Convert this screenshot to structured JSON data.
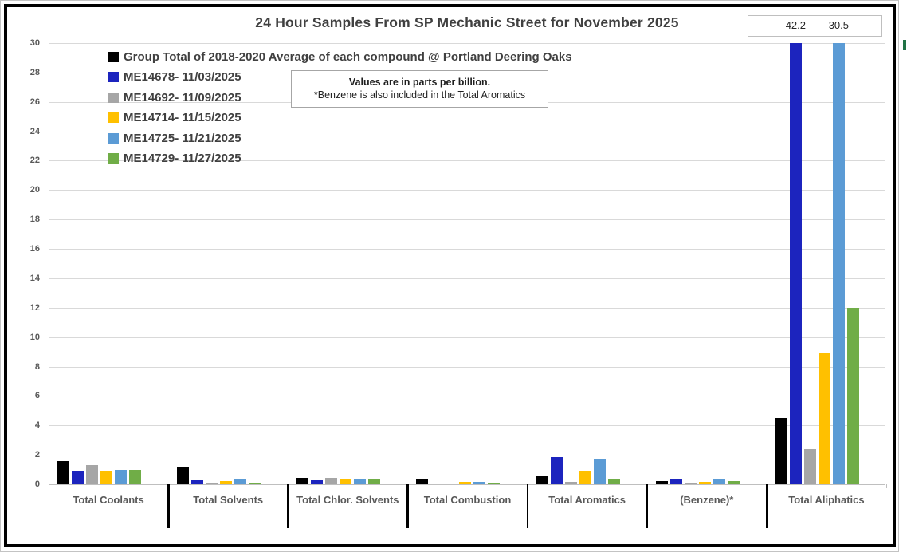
{
  "chart_data": {
    "type": "bar",
    "title": "24 Hour Samples From SP Mechanic Street for November 2025",
    "note_line1": "Values are in parts per billion.",
    "note_line2": "*Benzene is also included in the Total Aromatics",
    "categories": [
      "Total Coolants",
      "Total Solvents",
      "Total Chlor. Solvents",
      "Total Combustion",
      "Total Aromatics",
      "(Benzene)*",
      "Total Aliphatics"
    ],
    "series": [
      {
        "name": "Group Total of 2018-2020 Average of each compound @ Portland Deering Oaks",
        "color": "#000000",
        "values": [
          1.6,
          1.2,
          0.45,
          0.3,
          0.55,
          0.2,
          4.5
        ]
      },
      {
        "name": "ME14678- 11/03/2025",
        "color": "#1C24BE",
        "values": [
          0.9,
          0.25,
          0.25,
          0,
          1.85,
          0.35,
          42.2
        ]
      },
      {
        "name": "ME14692- 11/09/2025",
        "color": "#A6A6A6",
        "values": [
          1.3,
          0.1,
          0.45,
          0,
          0.15,
          0.1,
          2.4
        ]
      },
      {
        "name": "ME14714- 11/15/2025",
        "color": "#FFC000",
        "values": [
          0.85,
          0.2,
          0.35,
          0.15,
          0.85,
          0.15,
          8.9
        ]
      },
      {
        "name": "ME14725- 11/21/2025",
        "color": "#5B9BD5",
        "values": [
          1.0,
          0.4,
          0.35,
          0.15,
          1.75,
          0.4,
          30.5
        ]
      },
      {
        "name": "ME14729- 11/27/2025",
        "color": "#70AD47",
        "values": [
          1.0,
          0.1,
          0.3,
          0.1,
          0.4,
          0.2,
          12.0
        ]
      }
    ],
    "ylim": [
      0,
      30
    ],
    "ytick_step": 2,
    "ytick_labels": [
      "0",
      "2",
      "4",
      "6",
      "8",
      "10",
      "12",
      "14",
      "16",
      "18",
      "20",
      "22",
      "24",
      "26",
      "28",
      "30"
    ],
    "overflow_labels": [
      "42.2",
      "30.5"
    ],
    "legend_position": "top-left",
    "grid": true,
    "xlabel": "",
    "ylabel": ""
  },
  "colors": {
    "gridline": "#D9D9D9",
    "axis_line": "#BFBFBF",
    "category_separator": "#000000",
    "title_text": "#404040",
    "legend_text": "#404040",
    "axis_text": "#595959",
    "chart_border": "#000000",
    "sheet_edge_mark": "#217346"
  }
}
